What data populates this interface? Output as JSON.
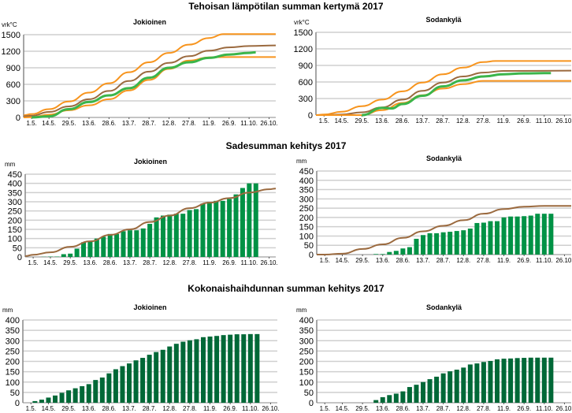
{
  "sections": [
    {
      "title": "Tehoisan lämpötilan summan kertymä 2017"
    },
    {
      "title": "Sadesumman kehitys 2017"
    },
    {
      "title": "Kokonaishaihdunnan summan kehitys 2017"
    }
  ],
  "colors": {
    "green_line": "#3bb54a",
    "orange": "#f7941d",
    "brown": "#9b6a3f",
    "rain_bar": "#009245",
    "evap_bar": "#006837",
    "grid": "#cfcfcf"
  },
  "chart_data": [
    {
      "type": "line",
      "section": 0,
      "title": "Jokioinen",
      "ylabel": "vrk°C",
      "ylim": [
        0,
        1500
      ],
      "yticks": [
        0,
        300,
        600,
        900,
        1200,
        1500
      ],
      "xticks": [
        "1.5.",
        "14.5.",
        "29.5.",
        "13.6.",
        "28.6.",
        "13.7.",
        "28.7.",
        "12.8.",
        "27.8.",
        "11.9.",
        "26.9.",
        "11.10.",
        "26.10."
      ],
      "grid": true,
      "series": [
        {
          "color": "orange",
          "points": [
            [
              "25.4.",
              40
            ],
            [
              "1.5.",
              60
            ],
            [
              "14.5.",
              150
            ],
            [
              "29.5.",
              290
            ],
            [
              "13.6.",
              450
            ],
            [
              "28.6.",
              620
            ],
            [
              "13.7.",
              820
            ],
            [
              "28.7.",
              1000
            ],
            [
              "12.8.",
              1170
            ],
            [
              "27.8.",
              1320
            ],
            [
              "11.9.",
              1440
            ],
            [
              "22.9.",
              1510
            ],
            [
              "31.10.",
              1510
            ]
          ]
        },
        {
          "color": "brown",
          "points": [
            [
              "25.4.",
              20
            ],
            [
              "1.5.",
              30
            ],
            [
              "14.5.",
              100
            ],
            [
              "29.5.",
              200
            ],
            [
              "13.6.",
              330
            ],
            [
              "28.6.",
              480
            ],
            [
              "13.7.",
              660
            ],
            [
              "28.7.",
              830
            ],
            [
              "12.8.",
              990
            ],
            [
              "27.8.",
              1110
            ],
            [
              "11.9.",
              1210
            ],
            [
              "26.9.",
              1270
            ],
            [
              "11.10.",
              1295
            ],
            [
              "31.10.",
              1305
            ]
          ]
        },
        {
          "color": "orange",
          "points": [
            [
              "25.4.",
              0
            ],
            [
              "1.5.",
              5
            ],
            [
              "14.5.",
              50
            ],
            [
              "29.5.",
              130
            ],
            [
              "13.6.",
              220
            ],
            [
              "28.6.",
              330
            ],
            [
              "13.7.",
              490
            ],
            [
              "28.7.",
              680
            ],
            [
              "12.8.",
              880
            ],
            [
              "27.8.",
              1030
            ],
            [
              "11.9.",
              1090
            ],
            [
              "26.9.",
              1095
            ],
            [
              "31.10.",
              1095
            ]
          ]
        },
        {
          "color": "green_line",
          "points": [
            [
              "1.5.",
              0
            ],
            [
              "14.5.",
              20
            ],
            [
              "29.5.",
              150
            ],
            [
              "13.6.",
              280
            ],
            [
              "28.6.",
              400
            ],
            [
              "13.7.",
              530
            ],
            [
              "28.7.",
              720
            ],
            [
              "12.8.",
              900
            ],
            [
              "27.8.",
              1000
            ],
            [
              "11.9.",
              1080
            ],
            [
              "26.9.",
              1140
            ],
            [
              "11.10.",
              1170
            ],
            [
              "16.10.",
              1180
            ]
          ]
        }
      ]
    },
    {
      "type": "line",
      "section": 0,
      "title": "Sodankylä",
      "ylabel": "vrk°C",
      "ylim": [
        0,
        1500
      ],
      "yticks": [
        0,
        300,
        600,
        900,
        1200,
        1500
      ],
      "xticks": [
        "1.5.",
        "14.5.",
        "29.5.",
        "13.6.",
        "28.6.",
        "13.7.",
        "28.7.",
        "12.8.",
        "27.8.",
        "11.9.",
        "26.9.",
        "11.10.",
        "26.10."
      ],
      "grid": true,
      "series": [
        {
          "color": "orange",
          "points": [
            [
              "25.4.",
              0
            ],
            [
              "1.5.",
              10
            ],
            [
              "14.5.",
              60
            ],
            [
              "29.5.",
              160
            ],
            [
              "13.6.",
              280
            ],
            [
              "28.6.",
              430
            ],
            [
              "13.7.",
              590
            ],
            [
              "28.7.",
              740
            ],
            [
              "12.8.",
              860
            ],
            [
              "27.8.",
              960
            ],
            [
              "5.9.",
              980
            ],
            [
              "31.10.",
              980
            ]
          ]
        },
        {
          "color": "brown",
          "points": [
            [
              "25.4.",
              0
            ],
            [
              "1.5.",
              0
            ],
            [
              "14.5.",
              10
            ],
            [
              "29.5.",
              50
            ],
            [
              "13.6.",
              140
            ],
            [
              "28.6.",
              280
            ],
            [
              "13.7.",
              440
            ],
            [
              "28.7.",
              590
            ],
            [
              "12.8.",
              700
            ],
            [
              "27.8.",
              770
            ],
            [
              "11.9.",
              800
            ],
            [
              "31.10.",
              805
            ]
          ]
        },
        {
          "color": "orange",
          "points": [
            [
              "25.4.",
              0
            ],
            [
              "29.5.",
              0
            ],
            [
              "13.6.",
              90
            ],
            [
              "28.6.",
              220
            ],
            [
              "13.7.",
              360
            ],
            [
              "28.7.",
              480
            ],
            [
              "12.8.",
              560
            ],
            [
              "27.8.",
              620
            ],
            [
              "31.10.",
              620
            ]
          ]
        },
        {
          "color": "green_line",
          "points": [
            [
              "29.5.",
              0
            ],
            [
              "13.6.",
              130
            ],
            [
              "20.6.",
              120
            ],
            [
              "28.6.",
              200
            ],
            [
              "13.7.",
              350
            ],
            [
              "28.7.",
              520
            ],
            [
              "12.8.",
              630
            ],
            [
              "27.8.",
              700
            ],
            [
              "11.9.",
              740
            ],
            [
              "26.9.",
              755
            ],
            [
              "11.10.",
              760
            ],
            [
              "16.10.",
              760
            ]
          ]
        }
      ]
    },
    {
      "type": "bar",
      "section": 1,
      "title": "Jokioinen",
      "ylabel": "mm",
      "ylim": [
        0,
        450
      ],
      "yticks": [
        0,
        50,
        100,
        150,
        200,
        250,
        300,
        350,
        400,
        450
      ],
      "xticks": [
        "1.5.",
        "14.5.",
        "29.5.",
        "13.6.",
        "28.6.",
        "13.7.",
        "28.7.",
        "12.8.",
        "27.8.",
        "11.9.",
        "26.9.",
        "11.10.",
        "26.10."
      ],
      "grid": true,
      "bar_color": "rain_bar",
      "values": [
        0,
        1,
        2,
        2,
        15,
        18,
        45,
        80,
        85,
        100,
        110,
        125,
        125,
        140,
        145,
        145,
        155,
        180,
        215,
        225,
        230,
        235,
        235,
        255,
        260,
        290,
        300,
        305,
        305,
        315,
        340,
        375,
        400,
        400
      ],
      "series": [
        {
          "color": "brown",
          "points": [
            [
              "25.4.",
              5
            ],
            [
              "1.5.",
              12
            ],
            [
              "14.5.",
              25
            ],
            [
              "29.5.",
              55
            ],
            [
              "13.6.",
              85
            ],
            [
              "28.6.",
              120
            ],
            [
              "13.7.",
              150
            ],
            [
              "28.7.",
              190
            ],
            [
              "12.8.",
              225
            ],
            [
              "27.8.",
              265
            ],
            [
              "11.9.",
              295
            ],
            [
              "26.9.",
              320
            ],
            [
              "11.10.",
              350
            ],
            [
              "26.10.",
              368
            ],
            [
              "31.10.",
              372
            ]
          ]
        }
      ]
    },
    {
      "type": "bar",
      "section": 1,
      "title": "Sodankylä",
      "ylabel": "mm",
      "ylim": [
        0,
        450
      ],
      "yticks": [
        0,
        50,
        100,
        150,
        200,
        250,
        300,
        350,
        400,
        450
      ],
      "xticks": [
        "1.5.",
        "14.5.",
        "29.5.",
        "13.6.",
        "28.6.",
        "13.7.",
        "28.7.",
        "12.8.",
        "27.8.",
        "11.9.",
        "26.9.",
        "11.10.",
        "26.10."
      ],
      "grid": true,
      "bar_color": "rain_bar",
      "values": [
        0,
        0,
        0,
        0,
        0,
        0,
        0,
        3,
        3,
        14,
        20,
        33,
        40,
        85,
        105,
        115,
        115,
        120,
        123,
        127,
        131,
        140,
        170,
        172,
        180,
        180,
        200,
        205,
        205,
        207,
        210,
        220,
        220,
        220
      ],
      "series": [
        {
          "color": "brown",
          "points": [
            [
              "25.4.",
              0
            ],
            [
              "1.5.",
              0
            ],
            [
              "14.5.",
              5
            ],
            [
              "29.5.",
              30
            ],
            [
              "13.6.",
              55
            ],
            [
              "28.6.",
              90
            ],
            [
              "13.7.",
              125
            ],
            [
              "28.7.",
              155
            ],
            [
              "12.8.",
              185
            ],
            [
              "27.8.",
              220
            ],
            [
              "11.9.",
              245
            ],
            [
              "26.9.",
              258
            ],
            [
              "11.10.",
              262
            ],
            [
              "31.10.",
              262
            ]
          ]
        }
      ]
    },
    {
      "type": "bar",
      "section": 2,
      "title": "Jokioinen",
      "ylabel": "mm",
      "ylim": [
        0,
        400
      ],
      "yticks": [
        0,
        50,
        100,
        150,
        200,
        250,
        300,
        350,
        400
      ],
      "xticks": [
        "1.5.",
        "14.5.",
        "29.5.",
        "13.6.",
        "28.6.",
        "13.7.",
        "28.7.",
        "12.8.",
        "27.8.",
        "11.9.",
        "26.9.",
        "11.10.",
        "26.10."
      ],
      "grid": true,
      "bar_color": "evap_bar",
      "values": [
        8,
        15,
        25,
        35,
        48,
        60,
        70,
        80,
        90,
        110,
        122,
        142,
        162,
        177,
        190,
        205,
        217,
        232,
        245,
        256,
        272,
        285,
        295,
        302,
        307,
        317,
        320,
        323,
        327,
        329,
        331,
        331,
        332,
        332
      ],
      "series": []
    },
    {
      "type": "bar",
      "section": 2,
      "title": "Sodankylä",
      "ylabel": "mm",
      "ylim": [
        0,
        400
      ],
      "yticks": [
        0,
        50,
        100,
        150,
        200,
        250,
        300,
        350,
        400
      ],
      "xticks": [
        "1.5.",
        "14.5.",
        "29.5.",
        "13.6.",
        "28.6.",
        "13.7.",
        "28.7.",
        "12.8.",
        "27.8.",
        "11.9.",
        "26.9.",
        "11.10.",
        "26.10."
      ],
      "grid": true,
      "bar_color": "evap_bar",
      "values": [
        0,
        0,
        0,
        0,
        0,
        0,
        0,
        13,
        27,
        37,
        44,
        55,
        76,
        87,
        100,
        114,
        126,
        142,
        152,
        160,
        170,
        185,
        190,
        197,
        202,
        210,
        213,
        214,
        216,
        217,
        218,
        218,
        218,
        218
      ],
      "series": []
    }
  ]
}
